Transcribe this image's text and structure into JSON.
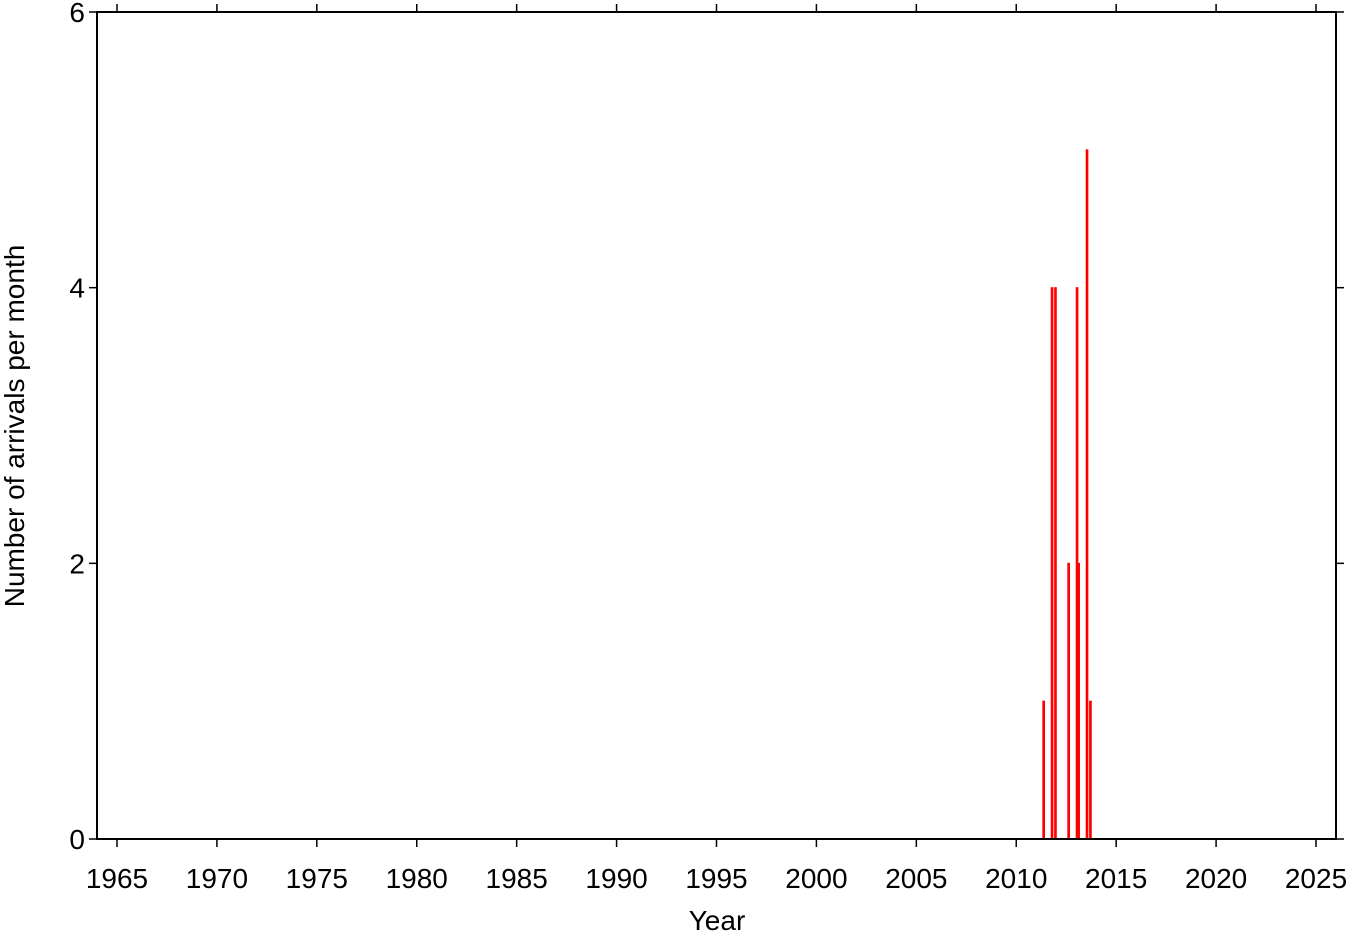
{
  "chart_data": {
    "type": "bar",
    "x_label": "Year",
    "y_label": "Number of arrivals per month",
    "x": [
      2011.33,
      2011.75,
      2011.92,
      2012.58,
      2013.0,
      2013.08,
      2013.5,
      2013.67
    ],
    "values": [
      1,
      4,
      4,
      2,
      4,
      2,
      5,
      1
    ],
    "color": "#ff0000",
    "xlim": [
      1964,
      2026
    ],
    "xticks": [
      1965,
      1970,
      1975,
      1980,
      1985,
      1990,
      1995,
      2000,
      2005,
      2010,
      2015,
      2020,
      2025
    ],
    "ylim": [
      0,
      6
    ],
    "yticks": [
      0,
      2,
      4,
      6
    ],
    "grid": false
  }
}
